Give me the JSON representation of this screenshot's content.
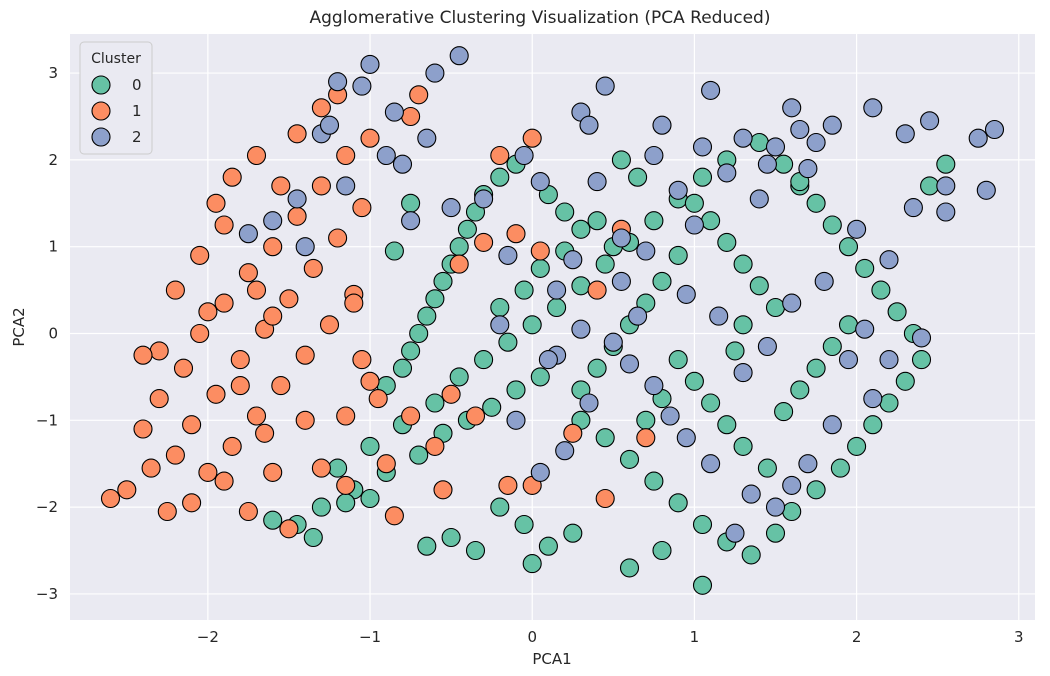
{
  "chart_data": {
    "type": "scatter",
    "title": "Agglomerative Clustering Visualization (PCA Reduced)",
    "xlabel": "PCA1",
    "ylabel": "PCA2",
    "xlim": [
      -2.85,
      3.1
    ],
    "ylim": [
      -3.3,
      3.45
    ],
    "xticks": [
      -2,
      -1,
      0,
      1,
      2,
      3
    ],
    "yticks": [
      -3,
      -2,
      -1,
      0,
      1,
      2,
      3
    ],
    "xtick_labels": [
      "−2",
      "−1",
      "0",
      "1",
      "2",
      "3"
    ],
    "ytick_labels": [
      "−3",
      "−2",
      "−1",
      "0",
      "1",
      "2",
      "3"
    ],
    "grid": true,
    "legend": {
      "title": "Cluster",
      "placement": "top-left"
    },
    "series": [
      {
        "name": "0",
        "color": "#66c2a5",
        "points": [
          [
            -1.6,
            -2.15
          ],
          [
            -1.3,
            -2.0
          ],
          [
            -1.1,
            -1.8
          ],
          [
            -0.9,
            -1.6
          ],
          [
            -0.7,
            -1.4
          ],
          [
            -0.55,
            -1.15
          ],
          [
            -0.4,
            -1.0
          ],
          [
            -0.25,
            -0.85
          ],
          [
            -0.1,
            -0.65
          ],
          [
            0.05,
            -0.5
          ],
          [
            -1.45,
            -2.2
          ],
          [
            -1.2,
            -1.55
          ],
          [
            -1.0,
            -1.3
          ],
          [
            -0.8,
            -1.05
          ],
          [
            -0.6,
            -0.8
          ],
          [
            -0.45,
            -0.5
          ],
          [
            -0.3,
            -0.3
          ],
          [
            -0.15,
            -0.1
          ],
          [
            0.0,
            0.1
          ],
          [
            0.15,
            0.3
          ],
          [
            0.3,
            0.55
          ],
          [
            0.45,
            0.8
          ],
          [
            0.6,
            1.05
          ],
          [
            0.75,
            1.3
          ],
          [
            0.9,
            1.55
          ],
          [
            1.05,
            1.8
          ],
          [
            1.2,
            2.0
          ],
          [
            1.4,
            2.2
          ],
          [
            1.55,
            1.95
          ],
          [
            1.65,
            1.7
          ],
          [
            -0.9,
            -0.6
          ],
          [
            -0.8,
            -0.4
          ],
          [
            -0.75,
            -0.2
          ],
          [
            -0.7,
            0.0
          ],
          [
            -0.65,
            0.2
          ],
          [
            -0.6,
            0.4
          ],
          [
            -0.55,
            0.6
          ],
          [
            -0.5,
            0.8
          ],
          [
            -0.45,
            1.0
          ],
          [
            -0.4,
            1.2
          ],
          [
            -0.35,
            1.4
          ],
          [
            -0.3,
            1.6
          ],
          [
            -0.2,
            1.8
          ],
          [
            -0.1,
            1.95
          ],
          [
            0.1,
            1.6
          ],
          [
            0.2,
            1.4
          ],
          [
            0.3,
            1.2
          ],
          [
            0.2,
            0.95
          ],
          [
            0.05,
            0.75
          ],
          [
            -0.05,
            0.5
          ],
          [
            -0.2,
            0.3
          ],
          [
            0.3,
            -1.0
          ],
          [
            0.45,
            -1.2
          ],
          [
            0.6,
            -1.45
          ],
          [
            0.75,
            -1.7
          ],
          [
            0.9,
            -1.95
          ],
          [
            1.05,
            -2.2
          ],
          [
            1.2,
            -2.4
          ],
          [
            1.35,
            -2.55
          ],
          [
            1.5,
            -2.3
          ],
          [
            1.6,
            -2.05
          ],
          [
            1.75,
            -1.8
          ],
          [
            1.9,
            -1.55
          ],
          [
            2.0,
            -1.3
          ],
          [
            2.1,
            -1.05
          ],
          [
            2.2,
            -0.8
          ],
          [
            2.3,
            -0.55
          ],
          [
            2.4,
            -0.3
          ],
          [
            2.35,
            0.0
          ],
          [
            2.25,
            0.25
          ],
          [
            2.15,
            0.5
          ],
          [
            2.05,
            0.75
          ],
          [
            1.95,
            1.0
          ],
          [
            1.85,
            1.25
          ],
          [
            1.75,
            1.5
          ],
          [
            1.65,
            1.75
          ],
          [
            1.5,
            0.3
          ],
          [
            1.4,
            0.55
          ],
          [
            1.3,
            0.8
          ],
          [
            1.2,
            1.05
          ],
          [
            1.1,
            1.3
          ],
          [
            1.0,
            1.5
          ],
          [
            0.9,
            0.9
          ],
          [
            0.8,
            0.6
          ],
          [
            0.7,
            0.35
          ],
          [
            0.6,
            0.1
          ],
          [
            0.5,
            -0.15
          ],
          [
            0.4,
            -0.4
          ],
          [
            0.3,
            -0.65
          ],
          [
            0.9,
            -0.3
          ],
          [
            1.0,
            -0.55
          ],
          [
            1.1,
            -0.8
          ],
          [
            1.2,
            -1.05
          ],
          [
            1.3,
            -1.3
          ],
          [
            1.45,
            -1.55
          ],
          [
            1.55,
            -0.9
          ],
          [
            1.65,
            -0.65
          ],
          [
            1.75,
            -0.4
          ],
          [
            1.85,
            -0.15
          ],
          [
            1.95,
            0.1
          ],
          [
            -0.2,
            -2.0
          ],
          [
            -0.05,
            -2.2
          ],
          [
            0.1,
            -2.45
          ],
          [
            0.25,
            -2.3
          ],
          [
            -0.35,
            -2.5
          ],
          [
            -0.5,
            -2.35
          ],
          [
            -0.65,
            -2.45
          ],
          [
            0.0,
            -2.65
          ],
          [
            0.6,
            -2.7
          ],
          [
            0.8,
            -2.5
          ],
          [
            1.05,
            -2.9
          ],
          [
            -1.0,
            -1.9
          ],
          [
            -1.15,
            -1.95
          ],
          [
            -1.35,
            -2.35
          ],
          [
            0.55,
            2.0
          ],
          [
            0.65,
            1.8
          ],
          [
            0.5,
            1.0
          ],
          [
            0.4,
            1.3
          ],
          [
            1.3,
            0.1
          ],
          [
            1.25,
            -0.2
          ],
          [
            0.8,
            -0.75
          ],
          [
            0.7,
            -1.0
          ],
          [
            -0.85,
            0.95
          ],
          [
            -0.75,
            1.5
          ],
          [
            2.55,
            1.95
          ],
          [
            2.45,
            1.7
          ]
        ]
      },
      {
        "name": "1",
        "color": "#fc8d62",
        "points": [
          [
            -2.6,
            -1.9
          ],
          [
            -2.5,
            -1.8
          ],
          [
            -2.4,
            -1.1
          ],
          [
            -2.35,
            -1.55
          ],
          [
            -2.3,
            -0.75
          ],
          [
            -2.25,
            -2.05
          ],
          [
            -2.2,
            -1.4
          ],
          [
            -2.15,
            -0.4
          ],
          [
            -2.1,
            -1.05
          ],
          [
            -2.05,
            0.0
          ],
          [
            -2.0,
            -1.6
          ],
          [
            -1.95,
            -0.7
          ],
          [
            -1.9,
            0.35
          ],
          [
            -1.85,
            -1.3
          ],
          [
            -1.8,
            -0.3
          ],
          [
            -1.75,
            0.7
          ],
          [
            -1.7,
            -0.95
          ],
          [
            -1.65,
            0.05
          ],
          [
            -1.6,
            1.0
          ],
          [
            -1.55,
            -0.6
          ],
          [
            -1.5,
            0.4
          ],
          [
            -1.45,
            1.35
          ],
          [
            -1.4,
            -0.25
          ],
          [
            -1.35,
            0.75
          ],
          [
            -1.3,
            1.7
          ],
          [
            -1.25,
            0.1
          ],
          [
            -1.2,
            1.1
          ],
          [
            -1.15,
            2.05
          ],
          [
            -1.1,
            0.45
          ],
          [
            -1.05,
            1.45
          ],
          [
            -2.3,
            -0.2
          ],
          [
            -2.2,
            0.5
          ],
          [
            -2.05,
            0.9
          ],
          [
            -1.95,
            1.5
          ],
          [
            -1.85,
            1.8
          ],
          [
            -1.7,
            2.05
          ],
          [
            -1.55,
            1.7
          ],
          [
            -1.45,
            2.3
          ],
          [
            -1.3,
            2.6
          ],
          [
            -1.2,
            2.75
          ],
          [
            -1.0,
            2.25
          ],
          [
            -0.75,
            2.5
          ],
          [
            -0.7,
            2.75
          ],
          [
            -2.4,
            -0.25
          ],
          [
            -2.1,
            -1.95
          ],
          [
            -1.9,
            -1.7
          ],
          [
            -1.75,
            -2.05
          ],
          [
            -1.6,
            -1.6
          ],
          [
            -1.5,
            -2.25
          ],
          [
            -1.3,
            -1.55
          ],
          [
            -1.15,
            -1.75
          ],
          [
            -1.0,
            -0.55
          ],
          [
            -0.9,
            -1.5
          ],
          [
            -0.85,
            -2.1
          ],
          [
            -0.75,
            -0.95
          ],
          [
            -0.6,
            -1.3
          ],
          [
            -0.55,
            -1.8
          ],
          [
            -0.5,
            -0.7
          ],
          [
            -0.35,
            -0.95
          ],
          [
            -0.45,
            0.8
          ],
          [
            -0.3,
            1.05
          ],
          [
            -0.1,
            1.15
          ],
          [
            0.05,
            0.95
          ],
          [
            -0.2,
            2.05
          ],
          [
            0.0,
            2.25
          ],
          [
            -1.15,
            -0.95
          ],
          [
            -1.05,
            -0.3
          ],
          [
            -0.95,
            -0.75
          ],
          [
            -1.1,
            0.35
          ],
          [
            -1.4,
            -1.0
          ],
          [
            -1.65,
            -1.15
          ],
          [
            -1.8,
            -0.6
          ],
          [
            -2.0,
            0.25
          ],
          [
            -1.9,
            1.25
          ],
          [
            -1.7,
            0.5
          ],
          [
            -1.6,
            0.2
          ],
          [
            0.4,
            0.5
          ],
          [
            0.55,
            1.2
          ],
          [
            0.7,
            -1.2
          ],
          [
            0.45,
            -1.9
          ],
          [
            0.25,
            -1.15
          ],
          [
            -0.15,
            -1.75
          ],
          [
            0.0,
            -1.75
          ]
        ]
      },
      {
        "name": "2",
        "color": "#8da0cb",
        "points": [
          [
            -1.75,
            1.15
          ],
          [
            -1.6,
            1.3
          ],
          [
            -1.45,
            1.55
          ],
          [
            -1.4,
            1.0
          ],
          [
            -1.3,
            2.3
          ],
          [
            -1.2,
            2.9
          ],
          [
            -1.15,
            1.7
          ],
          [
            -1.05,
            2.85
          ],
          [
            -1.0,
            3.1
          ],
          [
            -0.9,
            2.05
          ],
          [
            -0.85,
            2.55
          ],
          [
            -0.8,
            1.95
          ],
          [
            -0.75,
            1.3
          ],
          [
            -0.65,
            2.25
          ],
          [
            -0.6,
            3.0
          ],
          [
            -0.45,
            3.2
          ],
          [
            -0.3,
            1.55
          ],
          [
            -0.15,
            0.9
          ],
          [
            -0.05,
            2.05
          ],
          [
            0.05,
            1.75
          ],
          [
            0.15,
            0.5
          ],
          [
            0.25,
            0.85
          ],
          [
            0.3,
            2.55
          ],
          [
            0.35,
            2.4
          ],
          [
            0.4,
            1.75
          ],
          [
            0.45,
            2.85
          ],
          [
            0.55,
            1.1
          ],
          [
            0.65,
            0.2
          ],
          [
            0.75,
            2.05
          ],
          [
            0.8,
            2.4
          ],
          [
            0.9,
            1.65
          ],
          [
            1.0,
            1.25
          ],
          [
            1.05,
            2.15
          ],
          [
            1.1,
            2.8
          ],
          [
            1.2,
            1.85
          ],
          [
            1.3,
            2.25
          ],
          [
            1.4,
            1.55
          ],
          [
            1.45,
            1.95
          ],
          [
            1.5,
            2.15
          ],
          [
            1.6,
            2.6
          ],
          [
            1.65,
            2.35
          ],
          [
            1.7,
            1.9
          ],
          [
            1.75,
            2.2
          ],
          [
            1.85,
            2.4
          ],
          [
            2.0,
            1.2
          ],
          [
            2.1,
            2.6
          ],
          [
            2.2,
            0.85
          ],
          [
            2.3,
            2.3
          ],
          [
            2.35,
            1.45
          ],
          [
            2.45,
            2.45
          ],
          [
            2.55,
            1.7
          ],
          [
            2.75,
            2.25
          ],
          [
            2.85,
            2.35
          ],
          [
            2.55,
            1.4
          ],
          [
            2.8,
            1.65
          ],
          [
            2.4,
            -0.05
          ],
          [
            2.2,
            -0.3
          ],
          [
            2.05,
            0.05
          ],
          [
            1.95,
            -0.3
          ],
          [
            2.1,
            -0.75
          ],
          [
            1.85,
            -1.05
          ],
          [
            1.7,
            -1.5
          ],
          [
            1.6,
            -1.75
          ],
          [
            1.5,
            -2.0
          ],
          [
            1.35,
            -1.85
          ],
          [
            1.25,
            -2.3
          ],
          [
            1.1,
            -1.5
          ],
          [
            0.95,
            -1.2
          ],
          [
            0.85,
            -0.95
          ],
          [
            0.75,
            -0.6
          ],
          [
            0.6,
            -0.35
          ],
          [
            0.5,
            -0.1
          ],
          [
            0.35,
            -0.8
          ],
          [
            0.2,
            -1.35
          ],
          [
            0.05,
            -1.6
          ],
          [
            -0.1,
            -1.0
          ],
          [
            0.15,
            -0.25
          ],
          [
            0.55,
            0.6
          ],
          [
            0.7,
            0.95
          ],
          [
            0.95,
            0.45
          ],
          [
            1.15,
            0.2
          ],
          [
            1.3,
            -0.45
          ],
          [
            1.45,
            -0.15
          ],
          [
            1.6,
            0.35
          ],
          [
            1.8,
            0.6
          ],
          [
            -1.25,
            2.4
          ],
          [
            -0.5,
            1.45
          ],
          [
            -0.2,
            0.1
          ],
          [
            0.1,
            -0.3
          ],
          [
            0.3,
            0.05
          ]
        ]
      }
    ]
  }
}
